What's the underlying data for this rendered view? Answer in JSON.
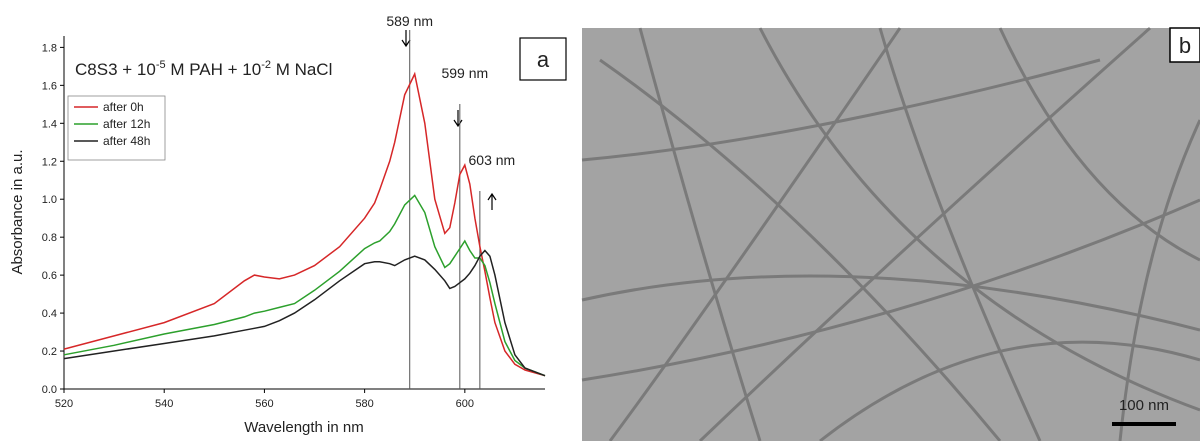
{
  "chart_data": {
    "type": "line",
    "title_parts": [
      "C8S3 + 10",
      "-5",
      " M PAH + 10",
      "-2",
      " M NaCl"
    ],
    "panel_label": "a",
    "xlabel": "Wavelength in nm",
    "ylabel": "Absorbance in a.u.",
    "x": [
      520,
      530,
      540,
      550,
      556,
      558,
      560,
      563,
      566,
      570,
      575,
      580,
      582,
      583,
      585,
      586,
      588,
      590,
      592,
      594,
      596,
      597,
      598,
      599,
      600,
      601,
      602,
      603,
      604,
      605,
      606,
      608,
      610,
      612,
      616
    ],
    "series": [
      {
        "name": "after 0h",
        "color": "#d62728",
        "values": [
          0.21,
          0.28,
          0.35,
          0.45,
          0.57,
          0.6,
          0.59,
          0.58,
          0.6,
          0.65,
          0.75,
          0.9,
          0.98,
          1.05,
          1.2,
          1.3,
          1.55,
          1.66,
          1.4,
          1.0,
          0.82,
          0.85,
          0.98,
          1.13,
          1.18,
          1.08,
          0.9,
          0.75,
          0.62,
          0.48,
          0.35,
          0.2,
          0.13,
          0.1,
          0.07
        ]
      },
      {
        "name": "after 12h",
        "color": "#2ca02c",
        "values": [
          0.18,
          0.23,
          0.29,
          0.34,
          0.38,
          0.4,
          0.41,
          0.43,
          0.45,
          0.52,
          0.62,
          0.74,
          0.77,
          0.78,
          0.83,
          0.87,
          0.97,
          1.02,
          0.93,
          0.75,
          0.64,
          0.66,
          0.7,
          0.74,
          0.78,
          0.73,
          0.69,
          0.69,
          0.65,
          0.56,
          0.45,
          0.25,
          0.15,
          0.11,
          0.07
        ]
      },
      {
        "name": "after 48h",
        "color": "#222222",
        "values": [
          0.16,
          0.2,
          0.24,
          0.28,
          0.31,
          0.32,
          0.33,
          0.36,
          0.4,
          0.47,
          0.57,
          0.66,
          0.67,
          0.67,
          0.66,
          0.65,
          0.68,
          0.7,
          0.68,
          0.63,
          0.57,
          0.53,
          0.54,
          0.56,
          0.58,
          0.61,
          0.65,
          0.7,
          0.73,
          0.7,
          0.6,
          0.35,
          0.18,
          0.11,
          0.07
        ]
      }
    ],
    "annotations": [
      {
        "x": 589,
        "label": "589 nm"
      },
      {
        "x": 599,
        "label": "599 nm"
      },
      {
        "x": 603,
        "label": "603 nm"
      }
    ],
    "xlim": [
      520,
      616
    ],
    "xticks": [
      520,
      540,
      560,
      580,
      600
    ],
    "ylim": [
      0,
      1.86
    ],
    "yticks": [
      {
        "value": 0,
        "label": "0.0"
      },
      0.2,
      0.4,
      0.6,
      0.8,
      {
        "value": 1,
        "label": "1.0"
      },
      1.2,
      1.4,
      1.6,
      1.8
    ],
    "legend": "upper left"
  },
  "image_panel": {
    "panel_label": "b",
    "scale_bar": "100 nm"
  }
}
